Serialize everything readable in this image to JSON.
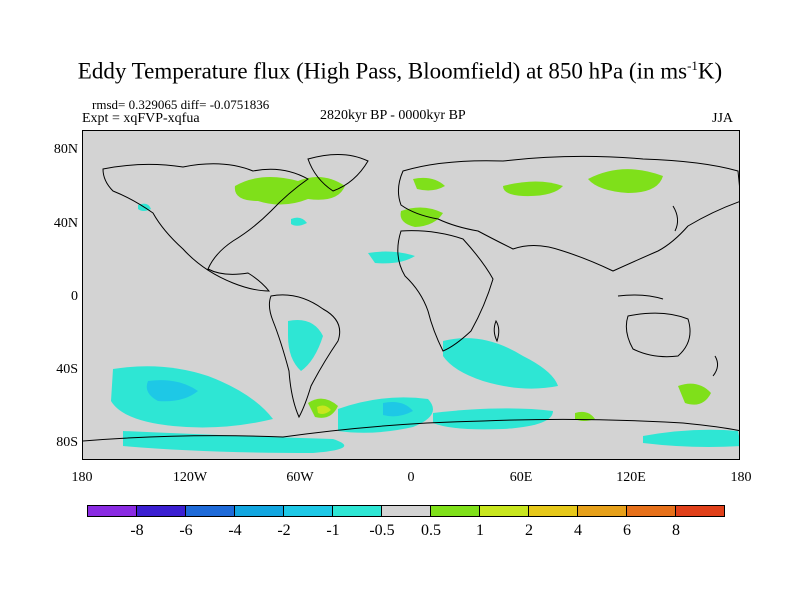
{
  "title": {
    "main": "Eddy Temperature flux (High Pass, Bloomfield) at 850 hPa (in ms",
    "sup": "-1",
    "suffix": "K)"
  },
  "stats": "rmsd= 0.329065 diff= -0.0751836",
  "experiment": "Expt = xqFVP-xqfua",
  "period": "2820kyr BP - 0000kyr BP",
  "season": "JJA",
  "lat_labels": [
    "80N",
    "40N",
    "0",
    "40S",
    "80S"
  ],
  "lon_labels": [
    "180",
    "120W",
    "60W",
    "0",
    "60E",
    "120E",
    "180"
  ],
  "colorbar": {
    "colors": [
      "#8a2be2",
      "#3b1fd1",
      "#1e6ad8",
      "#12a6e0",
      "#1ec8e6",
      "#2ee6d4",
      "#d3d3d3",
      "#7fe01a",
      "#c8e61e",
      "#e6c81a",
      "#e6a01a",
      "#e6701a",
      "#e0401a"
    ],
    "labels": [
      "-8",
      "-6",
      "-4",
      "-2",
      "-1",
      "-0.5",
      "0.5",
      "1",
      "2",
      "4",
      "6",
      "8"
    ]
  }
}
